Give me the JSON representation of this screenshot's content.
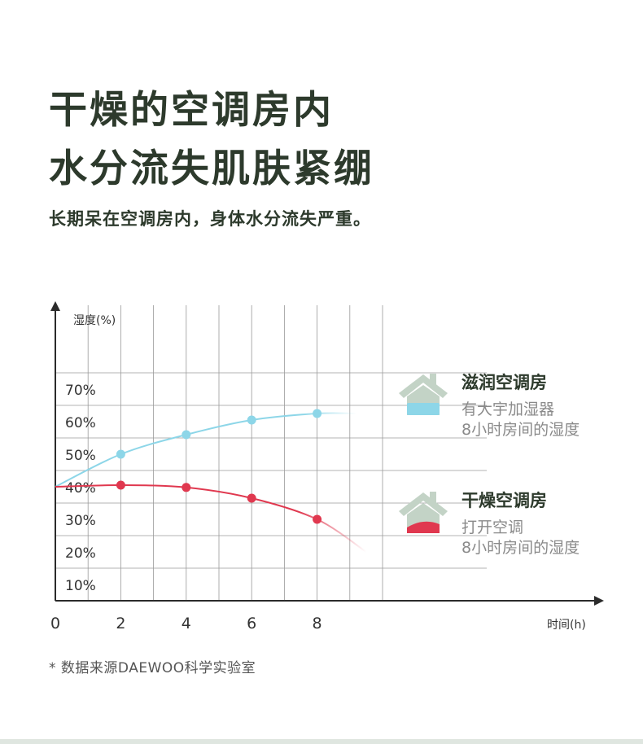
{
  "title_lines": [
    "干燥的空调房内",
    "水分流失肌肤紧绷"
  ],
  "subtitle": "长期呆在空调房内，身体水分流失严重。",
  "footnote": "* 数据来源DAEWOO科学实验室",
  "colors": {
    "title": "#2d3a2c",
    "moist": "#8dd6e8",
    "dry": "#e0384f",
    "grid": "#9a9a9a",
    "axis": "#2b2b2b",
    "house": "#c3d3c6"
  },
  "chart_data": {
    "type": "line",
    "ylabel": "湿度(%)",
    "xlabel": "时间(h)",
    "x_ticks": [
      "0",
      "2",
      "4",
      "6",
      "8"
    ],
    "y_ticks": [
      "10%",
      "20%",
      "30%",
      "40%",
      "50%",
      "60%",
      "70%"
    ],
    "xlim": [
      0,
      10
    ],
    "ylim": [
      5,
      75
    ],
    "grid": true,
    "legend_position": "right",
    "series": [
      {
        "name": "滋润空调房",
        "description": [
          "有大宇加湿器",
          "8小时房间的湿度"
        ],
        "color": "#8dd6e8",
        "icon": "house-icon-water",
        "x": [
          2,
          4,
          6,
          8
        ],
        "y": [
          50,
          56,
          60.5,
          62.5
        ],
        "curve_start": 40,
        "curve_end": 62.5
      },
      {
        "name": "干燥空调房",
        "description": [
          "打开空调",
          "8小时房间的湿度"
        ],
        "color": "#e0384f",
        "icon": "house-icon-dry",
        "x": [
          2,
          4,
          6,
          8
        ],
        "y": [
          40.5,
          39.8,
          36.5,
          30
        ],
        "curve_start": 40,
        "curve_end": 20
      }
    ]
  }
}
